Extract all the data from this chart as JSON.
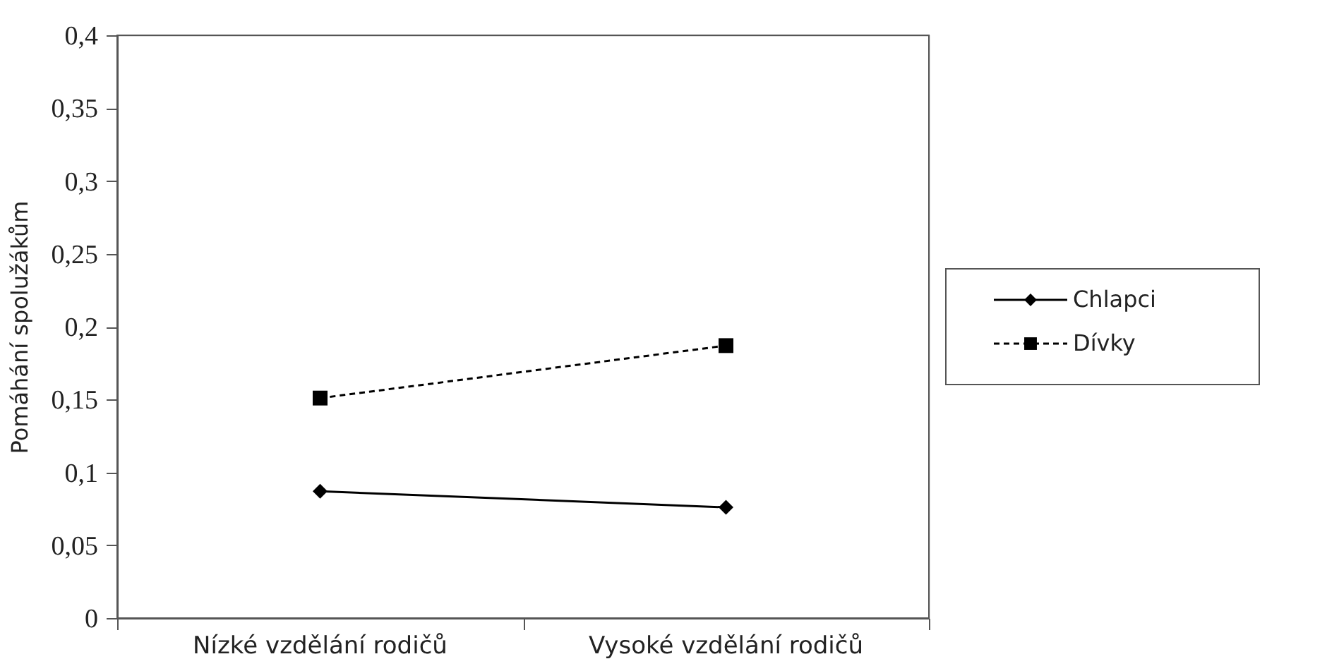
{
  "chart_data": {
    "type": "line",
    "ylabel": "Pomáhání spolužákům",
    "categories": [
      "Nízké vzdělání rodičů",
      "Vysoké vzdělání rodičů"
    ],
    "series": [
      {
        "name": "Chlapci",
        "color": "#000000",
        "values": [
          0.087,
          0.076
        ],
        "marker": "diamond",
        "line_style": "solid"
      },
      {
        "name": "Dívky",
        "color": "#000000",
        "values": [
          0.151,
          0.187
        ],
        "marker": "square",
        "line_style": "dashed"
      }
    ],
    "ylim": [
      0,
      0.4
    ],
    "yticks": [
      0,
      {
        "value": 0.05,
        "label": "0,05"
      },
      {
        "value": 0.1,
        "label": "0,1"
      },
      {
        "value": 0.15,
        "label": "0,15"
      },
      {
        "value": 0.2,
        "label": "0,2"
      },
      {
        "value": 0.25,
        "label": "0,25"
      },
      {
        "value": 0.3,
        "label": "0,3"
      },
      {
        "value": 0.35,
        "label": "0,35"
      },
      {
        "value": 0.4,
        "label": "0,4"
      }
    ],
    "grid": false,
    "legend": "right"
  }
}
